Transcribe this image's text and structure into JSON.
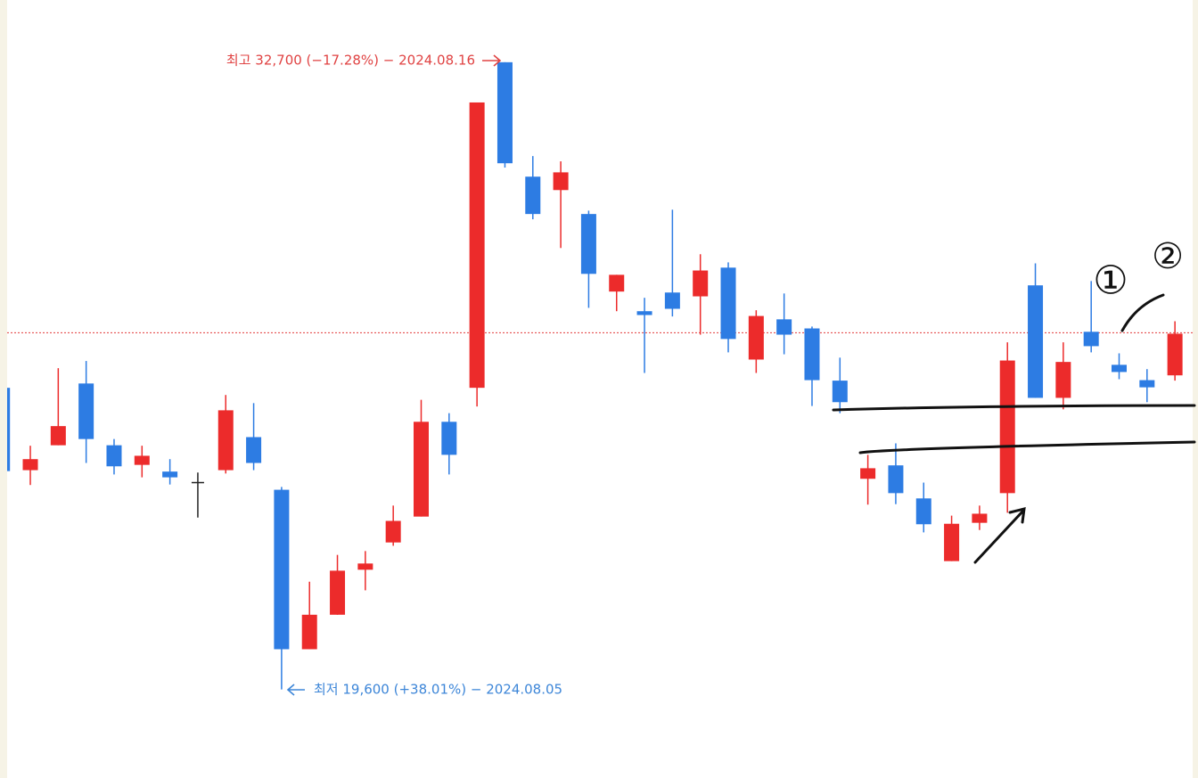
{
  "chart_data": {
    "type": "candlestick",
    "open": [
      25900,
      24180,
      24700,
      25990,
      24700,
      24290,
      24150,
      23920,
      24180,
      24870,
      23770,
      20440,
      21160,
      22100,
      22670,
      23210,
      25190,
      25900,
      32700,
      30310,
      30030,
      29530,
      27910,
      27500,
      27890,
      27810,
      28410,
      26490,
      27330,
      27140,
      26050,
      24000,
      24280,
      23590,
      22280,
      23080,
      23700,
      28040,
      25690,
      27070,
      26380,
      26060,
      26160
    ],
    "high": [
      25900,
      24690,
      26310,
      26460,
      24830,
      24690,
      24410,
      24130,
      25750,
      25580,
      23830,
      21850,
      22410,
      22490,
      23440,
      25650,
      25370,
      31860,
      32700,
      30740,
      30630,
      29600,
      28260,
      27780,
      29620,
      28690,
      28520,
      27520,
      27870,
      27180,
      26530,
      24500,
      24740,
      23920,
      23230,
      23440,
      26850,
      28500,
      26850,
      28130,
      26620,
      26290,
      27290
    ],
    "low": [
      24160,
      23870,
      24700,
      24330,
      24090,
      24030,
      23880,
      23190,
      24110,
      24180,
      19600,
      20440,
      21160,
      21670,
      22600,
      23210,
      24090,
      25510,
      30500,
      29420,
      28820,
      27570,
      27500,
      26210,
      27390,
      27010,
      26640,
      26210,
      26600,
      25520,
      25370,
      23460,
      23470,
      22880,
      22280,
      22930,
      23290,
      25690,
      25450,
      26640,
      26080,
      25600,
      26050
    ],
    "close": [
      24160,
      24410,
      25100,
      24830,
      24260,
      24480,
      24030,
      23920,
      25430,
      24330,
      20440,
      21160,
      22080,
      22230,
      23120,
      25190,
      24500,
      31860,
      30590,
      29530,
      30400,
      28280,
      28260,
      27420,
      27550,
      28350,
      26920,
      27400,
      27010,
      26060,
      25600,
      24220,
      23700,
      23050,
      23060,
      23270,
      26470,
      25690,
      26440,
      26770,
      26230,
      25910,
      27030
    ],
    "up_color": "#ec2b2b",
    "down_color": "#2d7ce3",
    "flat_color": "#222222",
    "ylim": [
      17750,
      34000
    ],
    "reference_line": {
      "value": 27050,
      "color": "#e23a3a"
    },
    "max_label": "최고 32,700 (−17.28%) − 2024.08.16",
    "min_label": "최저 19,600 (+38.01%) − 2024.08.05",
    "max_label_color": "#e04343",
    "min_label_color": "#3d86d8",
    "handwritten_marks": [
      "①",
      "②"
    ]
  }
}
